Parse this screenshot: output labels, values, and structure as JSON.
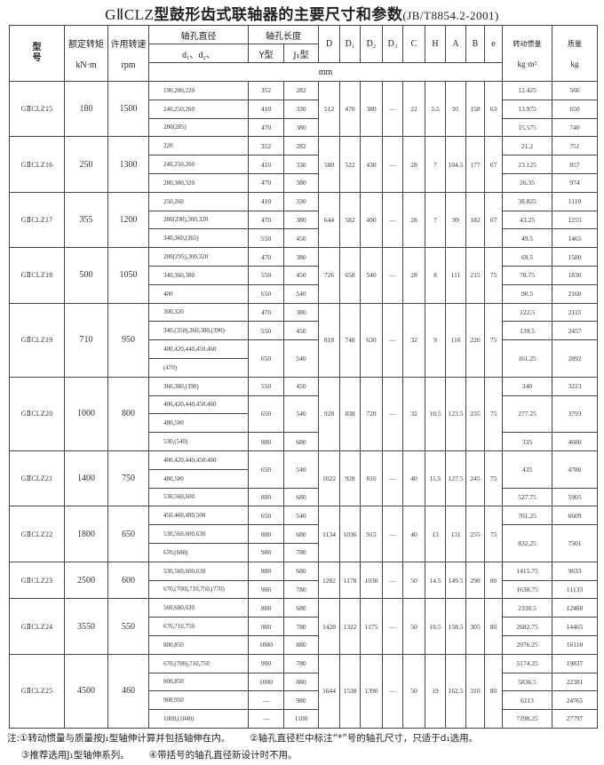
{
  "title": {
    "model": "GⅡCLZ",
    "text": "型鼓形齿式联轴器的主要尺寸和参数",
    "standard": "(JB/T8854.2-2001)"
  },
  "header": {
    "model": "型号",
    "torque": "额定转矩",
    "torque_unit": "kN·m",
    "speed": "许用转速",
    "speed_unit": "rpm",
    "bore_dia": "轴孔直径",
    "bore_dia_sub": "d₁、d₂、",
    "bore_len": "轴孔长度",
    "y_type": "Y型",
    "j_type": "J₁型",
    "dims": [
      "D",
      "D₁",
      "D₂",
      "D₃",
      "C",
      "H",
      "A",
      "B",
      "e"
    ],
    "mm": "mm",
    "inertia": "转动惯量",
    "inertia_unit": "kg·m²",
    "mass": "质量",
    "mass_unit": "kg"
  },
  "models": [
    {
      "name": "GⅡCLZ15",
      "torque": "180",
      "speed": "1500",
      "dims": [
        "512",
        "470",
        "380",
        "—",
        "22",
        "5.5",
        "91",
        "158",
        "63"
      ],
      "bores": [
        {
          "ds": [
            "190,200,220"
          ],
          "y": "352",
          "j": "282"
        },
        {
          "ds": [
            "240,250,260"
          ],
          "y": "410",
          "j": "330"
        },
        {
          "ds": [
            "280(285)"
          ],
          "y": "470",
          "j": "380"
        }
      ],
      "im": [
        {
          "i": "12.425",
          "m": "566",
          "span": 1
        },
        {
          "i": "13.975",
          "m": "650",
          "span": 1
        },
        {
          "i": "15.575",
          "m": "740",
          "span": 1
        }
      ]
    },
    {
      "name": "GⅡCLZ16",
      "torque": "250",
      "speed": "1300",
      "dims": [
        "580",
        "522",
        "430",
        "—",
        "28",
        "7",
        "104.5",
        "177",
        "67"
      ],
      "bores": [
        {
          "ds": [
            "220"
          ],
          "y": "352",
          "j": "282"
        },
        {
          "ds": [
            "240,250,260"
          ],
          "y": "410",
          "j": "330"
        },
        {
          "ds": [
            "280,300,320"
          ],
          "y": "470",
          "j": "380"
        }
      ],
      "im": [
        {
          "i": "21.2",
          "m": "751",
          "span": 1
        },
        {
          "i": "23.125",
          "m": "857",
          "span": 1
        },
        {
          "i": "26.35",
          "m": "974",
          "span": 1
        }
      ]
    },
    {
      "name": "GⅡCLZ17",
      "torque": "355",
      "speed": "1200",
      "dims": [
        "644",
        "582",
        "490",
        "—",
        "28",
        "7",
        "99",
        "182",
        "67"
      ],
      "bores": [
        {
          "ds": [
            "250,260"
          ],
          "y": "410",
          "j": "330"
        },
        {
          "ds": [
            "280(290),300,320"
          ],
          "y": "470",
          "j": "380"
        },
        {
          "ds": [
            "340,360,(365)"
          ],
          "y": "550",
          "j": "450"
        }
      ],
      "im": [
        {
          "i": "38.825",
          "m": "1110",
          "span": 1
        },
        {
          "i": "43.25",
          "m": "1255",
          "span": 1
        },
        {
          "i": "49.5",
          "m": "1465",
          "span": 1
        }
      ]
    },
    {
      "name": "GⅡCLZ18",
      "torque": "500",
      "speed": "1050",
      "dims": [
        "726",
        "658",
        "540",
        "—",
        "28",
        "8",
        "111",
        "215",
        "75"
      ],
      "bores": [
        {
          "ds": [
            "280(295),300,320"
          ],
          "y": "470",
          "j": "380"
        },
        {
          "ds": [
            "340,360,380"
          ],
          "y": "550",
          "j": "450"
        },
        {
          "ds": [
            "400"
          ],
          "y": "650",
          "j": "540"
        }
      ],
      "im": [
        {
          "i": "69.5",
          "m": "1580",
          "span": 1
        },
        {
          "i": "78.75",
          "m": "1830",
          "span": 1
        },
        {
          "i": "90.5",
          "m": "2160",
          "span": 1
        }
      ]
    },
    {
      "name": "GⅡCLZ19",
      "torque": "710",
      "speed": "950",
      "dims": [
        "818",
        "748",
        "630",
        "—",
        "32",
        "9",
        "116",
        "220",
        "75"
      ],
      "bores": [
        {
          "ds": [
            "300,320"
          ],
          "y": "470",
          "j": "380"
        },
        {
          "ds": [
            "340,(350),360,380,(390)"
          ],
          "y": "550",
          "j": "450"
        },
        {
          "ds": [
            "400,420,440,450,460",
            "(470)"
          ],
          "y": "650",
          "j": "540"
        }
      ],
      "im": [
        {
          "i": "122.5",
          "m": "2115",
          "span": 1
        },
        {
          "i": "139.5",
          "m": "2457",
          "span": 1
        },
        {
          "i": "161.25",
          "m": "2892",
          "span": 2
        }
      ]
    },
    {
      "name": "GⅡCLZ20",
      "torque": "1000",
      "speed": "800",
      "dims": [
        "928",
        "838",
        "720",
        "—",
        "32",
        "10.5",
        "123.5",
        "235",
        "75"
      ],
      "bores": [
        {
          "ds": [
            "360,380,(390)"
          ],
          "y": "550",
          "j": "450"
        },
        {
          "ds": [
            "400,420,440,450,460",
            "480,500"
          ],
          "y": "650",
          "j": "540"
        },
        {
          "ds": [
            "530,(540)"
          ],
          "y": "800",
          "j": "680"
        }
      ],
      "im": [
        {
          "i": "240",
          "m": "3223",
          "span": 1
        },
        {
          "i": "277.25",
          "m": "3793",
          "span": 2
        },
        {
          "i": "335",
          "m": "4680",
          "span": 1
        }
      ]
    },
    {
      "name": "GⅡCLZ21",
      "torque": "1400",
      "speed": "750",
      "dims": [
        "1022",
        "928",
        "810",
        "—",
        "40",
        "11.5",
        "127.5",
        "245",
        "75"
      ],
      "bores": [
        {
          "ds": [
            "400,420,440,450,460",
            "480,500"
          ],
          "y": "650",
          "j": "540"
        },
        {
          "ds": [
            "530,560,600"
          ],
          "y": "800",
          "j": "680"
        }
      ],
      "im": [
        {
          "i": "435",
          "m": "4780",
          "span": 2
        },
        {
          "i": "527.75",
          "m": "5905",
          "span": 1
        }
      ]
    },
    {
      "name": "GⅡCLZ22",
      "torque": "1800",
      "speed": "650",
      "dims": [
        "1134",
        "1036",
        "915",
        "—",
        "40",
        "13",
        "131",
        "255",
        "75"
      ],
      "bores": [
        {
          "ds": [
            "450,460,480,500"
          ],
          "y": "650",
          "j": "540"
        },
        {
          "ds": [
            "530,560,600,630"
          ],
          "y": "800",
          "j": "680"
        },
        {
          "ds": [
            "670,(680)"
          ],
          "y": "900",
          "j": "780"
        }
      ],
      "im": [
        {
          "i": "701.25",
          "m": "6609",
          "span": 1
        },
        {
          "i": "832.25",
          "m": "7501",
          "span": 2
        }
      ]
    },
    {
      "name": "GⅡCLZ23",
      "torque": "2500",
      "speed": "600",
      "dims": [
        "1282",
        "1178",
        "1030",
        "—",
        "50",
        "14.5",
        "149.5",
        "290",
        "80"
      ],
      "bores": [
        {
          "ds": [
            "530,560,600,630"
          ],
          "y": "800",
          "j": "680"
        },
        {
          "ds": [
            "670,(700),710,750,(770)"
          ],
          "y": "900",
          "j": "780"
        }
      ],
      "im": [
        {
          "i": "1415.75",
          "m": "9633",
          "span": 1
        },
        {
          "i": "1638.75",
          "m": "11133",
          "span": 1
        }
      ]
    },
    {
      "name": "GⅡCLZ24",
      "torque": "3550",
      "speed": "550",
      "dims": [
        "1428",
        "1322",
        "1175",
        "—",
        "50",
        "16.5",
        "158.5",
        "305",
        "80"
      ],
      "bores": [
        {
          "ds": [
            "560,600,630"
          ],
          "y": "800",
          "j": "680"
        },
        {
          "ds": [
            "670,710,750"
          ],
          "y": "900",
          "j": "780"
        },
        {
          "ds": [
            "800,850"
          ],
          "y": "1000",
          "j": "880"
        }
      ],
      "im": [
        {
          "i": "2330.5",
          "m": "12460",
          "span": 1
        },
        {
          "i": "2682.75",
          "m": "14465",
          "span": 1
        },
        {
          "i": "2976.25",
          "m": "16110",
          "span": 1
        }
      ]
    },
    {
      "name": "GⅡCLZ25",
      "torque": "4500",
      "speed": "460",
      "dims": [
        "1644",
        "1538",
        "1390",
        "—",
        "50",
        "19",
        "162.5",
        "310",
        "80"
      ],
      "bores": [
        {
          "ds": [
            "670,(700),710,750"
          ],
          "y": "900",
          "j": "780"
        },
        {
          "ds": [
            "800,850"
          ],
          "y": "1000",
          "j": "880"
        },
        {
          "ds": [
            "900,950"
          ],
          "y": "—",
          "j": "980"
        },
        {
          "ds": [
            "1000,(1040)"
          ],
          "y": "—",
          "j": "1100"
        }
      ],
      "im": [
        {
          "i": "5174.25",
          "m": "19837",
          "span": 1
        },
        {
          "i": "5836.5",
          "m": "22381",
          "span": 1
        },
        {
          "i": "6113",
          "m": "24765",
          "span": 1
        },
        {
          "i": "7198.25",
          "m": "27797",
          "span": 1
        }
      ]
    }
  ],
  "notes": {
    "prefix": "注:",
    "n1": "①转动惯量与质量按J₁型轴伸计算并包括轴伸在内。",
    "n2": "②轴孔直径栏中标注“*”号的轴孔尺寸，只适于d₁选用。",
    "n3": "③推荐选用J₁型轴伸系列。",
    "n4": "④带括号的轴孔直径新设计时不用。"
  }
}
